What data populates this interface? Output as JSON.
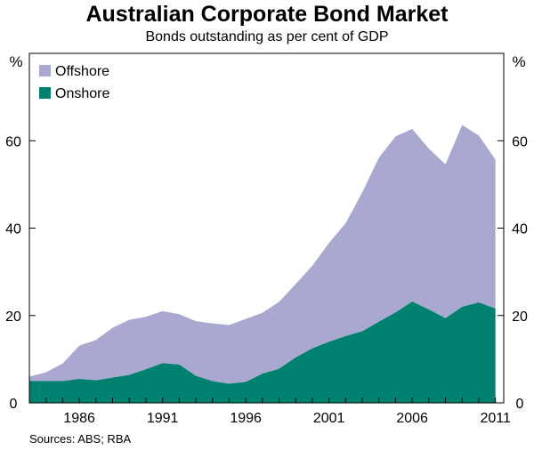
{
  "chart_data": {
    "type": "area",
    "stacked": true,
    "title": "Australian Corporate Bond Market",
    "subtitle": "Bonds outstanding as per cent of GDP",
    "ylabel_left": "%",
    "ylabel_right": "%",
    "xlim": [
      1983,
      2011.5
    ],
    "ylim": [
      0,
      80
    ],
    "y_ticks": [
      0,
      20,
      40,
      60
    ],
    "x_ticks": [
      1986,
      1991,
      1996,
      2001,
      2006,
      2011
    ],
    "x_tick_labels": [
      "1986",
      "1991",
      "1996",
      "2001",
      "2006",
      "2011"
    ],
    "legend_position": "top-left",
    "grid": false,
    "x": [
      1983,
      1984,
      1985,
      1986,
      1987,
      1988,
      1989,
      1990,
      1991,
      1992,
      1993,
      1994,
      1995,
      1996,
      1997,
      1998,
      1999,
      2000,
      2001,
      2002,
      2003,
      2004,
      2005,
      2006,
      2007,
      2008,
      2009,
      2010,
      2011
    ],
    "series": [
      {
        "name": "Onshore",
        "color": "#00806e",
        "values": [
          5,
          5,
          5,
          5.5,
          5.2,
          5.8,
          6.4,
          7.7,
          9.1,
          8.8,
          6.2,
          5.0,
          4.4,
          4.8,
          6.7,
          7.8,
          10.4,
          12.5,
          14.0,
          15.3,
          16.4,
          18.6,
          20.7,
          23.2,
          21.4,
          19.4,
          22.0,
          23.0,
          21.6
        ]
      },
      {
        "name": "Offshore",
        "color": "#a8a8d0",
        "values": [
          1,
          2,
          4,
          7.6,
          9.2,
          11.4,
          12.6,
          12.0,
          11.9,
          11.5,
          12.5,
          13.2,
          13.4,
          14.4,
          13.9,
          15.3,
          16.8,
          18.9,
          22.6,
          25.8,
          31.8,
          37.5,
          40.3,
          39.5,
          36.8,
          35.2,
          41.6,
          38.2,
          34.1
        ]
      }
    ],
    "source": "Sources: ABS; RBA"
  }
}
